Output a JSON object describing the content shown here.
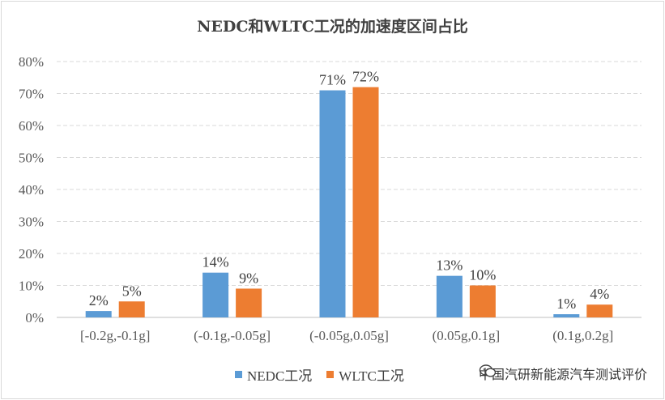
{
  "chart_data": {
    "type": "bar",
    "title": "NEDC和WLTC工况的加速度区间占比",
    "categories": [
      "[-0.2g,-0.1g]",
      "(-0.1g,-0.05g]",
      "(-0.05g,0.05g]",
      "(0.05g,0.1g]",
      "(0.1g,0.2g]"
    ],
    "series": [
      {
        "name": "NEDC工况",
        "color": "#5b9bd5",
        "values": [
          2,
          14,
          71,
          13,
          1
        ],
        "labels": [
          "2%",
          "14%",
          "71%",
          "13%",
          "1%"
        ]
      },
      {
        "name": "WLTC工况",
        "color": "#ed7d31",
        "values": [
          5,
          9,
          72,
          10,
          4
        ],
        "labels": [
          "5%",
          "9%",
          "72%",
          "10%",
          "4%"
        ]
      }
    ],
    "ylim": [
      0,
      80
    ],
    "yticks": [
      "0%",
      "10%",
      "20%",
      "30%",
      "40%",
      "50%",
      "60%",
      "70%",
      "80%"
    ],
    "xlabel": "",
    "ylabel": "",
    "grid": true,
    "legend_position": "bottom"
  },
  "legend": {
    "items": [
      "NEDC工况",
      "WLTC工况"
    ]
  },
  "watermark": {
    "text": "中国汽研新能源汽车测试评价"
  }
}
